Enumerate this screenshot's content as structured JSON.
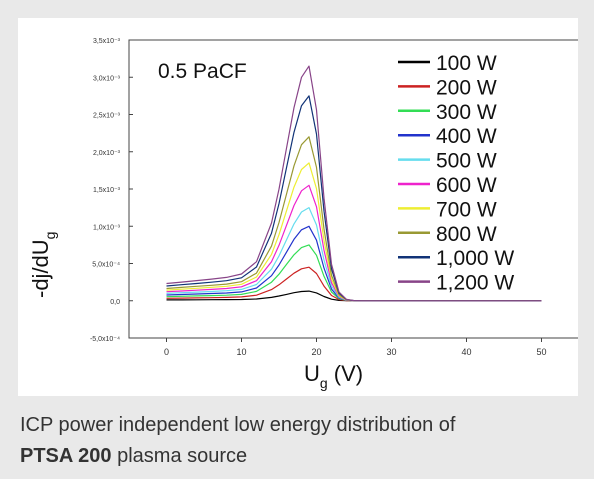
{
  "caption": {
    "line1": "ICP power independent low energy distribution of",
    "bold": "PTSA 200",
    "rest": " plasma source"
  },
  "chart_data": {
    "type": "line",
    "title": "0.5 PaCF",
    "xlabel_main": "U",
    "xlabel_sub": "g",
    "xlabel_unit": " (V)",
    "ylabel_main": "-dj/dU",
    "ylabel_sub": "g",
    "xlim": [
      -5,
      55
    ],
    "ylim": [
      -0.0005,
      0.0035
    ],
    "xticks": [
      0,
      10,
      20,
      30,
      40,
      50
    ],
    "xtick_labels": [
      "0",
      "10",
      "20",
      "30",
      "40",
      "50"
    ],
    "yticks": [
      -0.0005,
      0,
      0.0005,
      0.001,
      0.0015,
      0.002,
      0.0025,
      0.003,
      0.0035
    ],
    "ytick_labels": [
      "-5,0x10⁻⁴",
      "0,0",
      "5,0x10⁻⁴",
      "1,0x10⁻³",
      "1,5x10⁻³",
      "2,0x10⁻³",
      "2,5x10⁻³",
      "3,0x10⁻³",
      "3,5x10⁻³"
    ],
    "legend_position": "top-right",
    "x": [
      0,
      2,
      4,
      6,
      8,
      10,
      12,
      14,
      15,
      16,
      17,
      18,
      19,
      20,
      21,
      22,
      23,
      24,
      25,
      26,
      27,
      30,
      35,
      40,
      45,
      50
    ],
    "series": [
      {
        "name": "100 W",
        "color": "#000000",
        "peak": 0.00013,
        "base": 2e-05
      },
      {
        "name": "200 W",
        "color": "#cc2222",
        "peak": 0.00045,
        "base": 6e-05
      },
      {
        "name": "300 W",
        "color": "#33dd55",
        "peak": 0.00075,
        "base": 0.0001
      },
      {
        "name": "400 W",
        "color": "#2233cc",
        "peak": 0.001,
        "base": 0.00014
      },
      {
        "name": "500 W",
        "color": "#66ddee",
        "peak": 0.00125,
        "base": 0.00018
      },
      {
        "name": "600 W",
        "color": "#ee22cc",
        "peak": 0.00155,
        "base": 0.00022
      },
      {
        "name": "700 W",
        "color": "#eeee33",
        "peak": 0.00185,
        "base": 0.00026
      },
      {
        "name": "800 W",
        "color": "#999933",
        "peak": 0.0022,
        "base": 0.0003
      },
      {
        "name": "1,000 W",
        "color": "#113377",
        "peak": 0.00275,
        "base": 0.00036
      },
      {
        "name": "1,200 W",
        "color": "#884488",
        "peak": 0.00315,
        "base": 0.00042
      }
    ]
  }
}
